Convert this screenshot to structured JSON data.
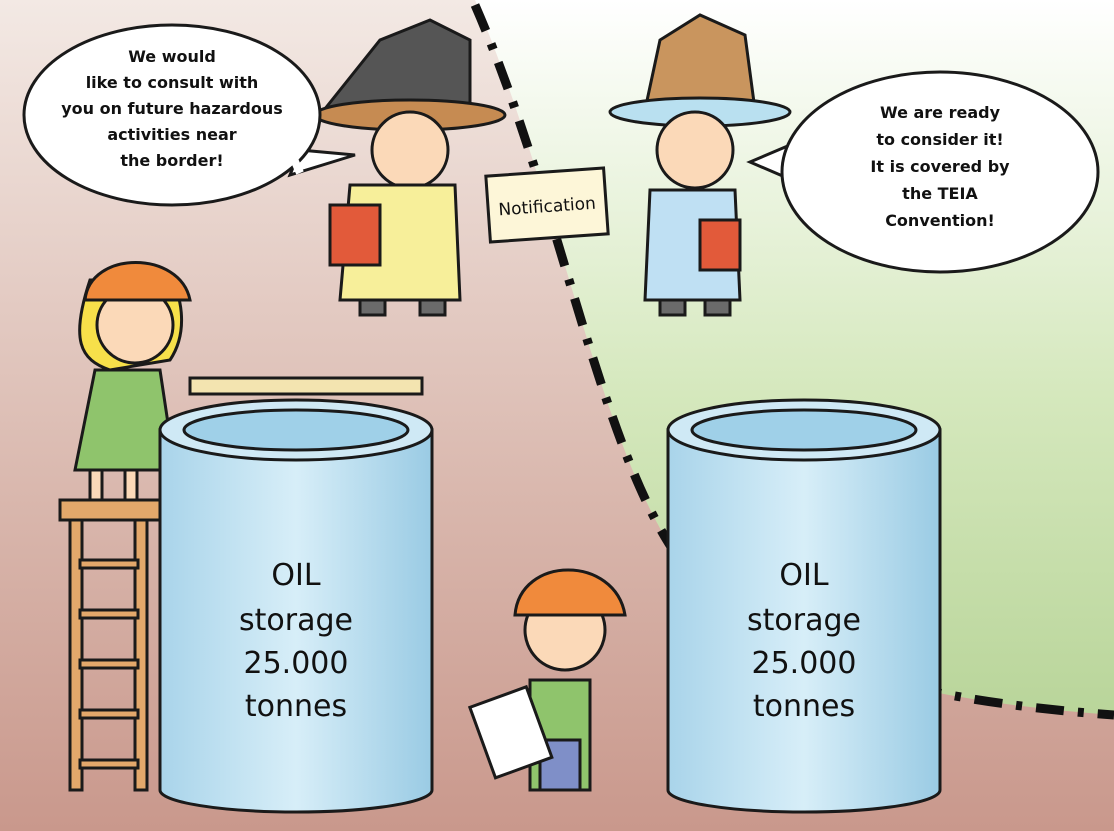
{
  "speech_bubbles": [
    {
      "lines": [
        "We would",
        "like to consult with",
        "you on future hazardous",
        "activities near",
        "the border!"
      ]
    },
    {
      "lines": [
        "We are ready",
        "to consider it!",
        "It is covered by",
        "the TEIA",
        "Convention!"
      ]
    }
  ],
  "sign": "Notification",
  "tanks": [
    {
      "lines": [
        "OIL",
        "storage",
        "25.000",
        "tonnes"
      ]
    },
    {
      "lines": [
        "OIL",
        "storage",
        "25.000",
        "tonnes"
      ]
    }
  ]
}
